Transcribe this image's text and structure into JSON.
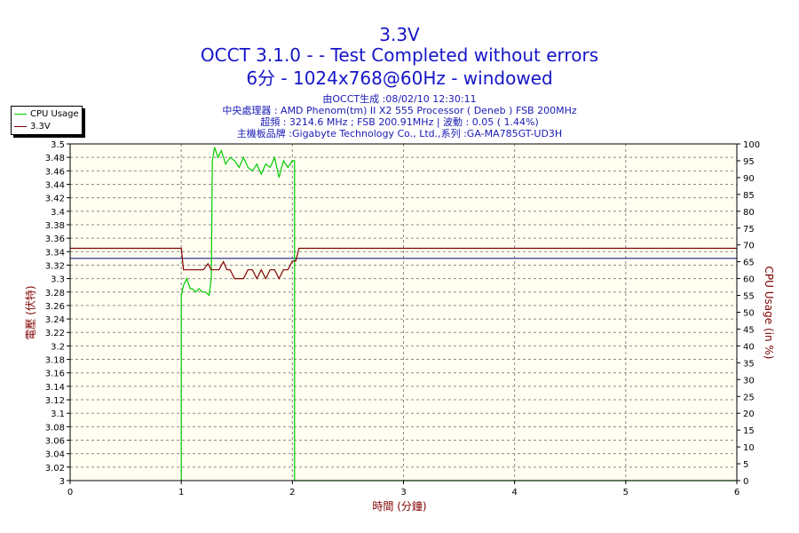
{
  "header": {
    "title": "3.3V",
    "line2": "OCCT 3.1.0 -  - Test Completed without errors",
    "line3": "6分 - 1024x768@60Hz - windowed",
    "info1": "由OCCT生成 :08/02/10 12:30:11",
    "info2": "中央處理器 : AMD Phenom(tm) II X2 555 Processor ( Deneb ) FSB 200MHz",
    "info3": "超頻 : 3214.6 MHz ; FSB 200.91MHz | 波動 : 0.05 ( 1.44%)",
    "info4": "主機板品牌 :Gigabyte Technology Co., Ltd.,系列 :GA-MA785GT-UD3H"
  },
  "legend": {
    "items": [
      {
        "label": "CPU Usage",
        "color": "#00cc00"
      },
      {
        "label": "3.3V",
        "color": "#800000"
      }
    ]
  },
  "chart_data": {
    "type": "line",
    "xlabel": "時間 (分鐘)",
    "ylabel_left": "電壓 (伏特)",
    "ylabel_right": "CPU Usage (in %)",
    "xlim": [
      0,
      6
    ],
    "ylim_left": [
      3.0,
      3.5
    ],
    "ylim_right": [
      0,
      100
    ],
    "x_ticks": [
      "0",
      "1",
      "2",
      "3",
      "4",
      "5",
      "6"
    ],
    "y_left_ticks": [
      "3",
      "3.02",
      "3.04",
      "3.06",
      "3.08",
      "3.1",
      "3.12",
      "3.14",
      "3.16",
      "3.18",
      "3.2",
      "3.22",
      "3.24",
      "3.26",
      "3.28",
      "3.3",
      "3.32",
      "3.34",
      "3.36",
      "3.38",
      "3.4",
      "3.42",
      "3.44",
      "3.46",
      "3.48",
      "3.5"
    ],
    "y_right_ticks": [
      "0",
      "5",
      "10",
      "15",
      "20",
      "25",
      "30",
      "35",
      "40",
      "45",
      "50",
      "55",
      "60",
      "65",
      "70",
      "75",
      "80",
      "85",
      "90",
      "95",
      "100"
    ],
    "grid": true,
    "legend_position": "top-left",
    "reference_line": {
      "axis": "left",
      "y": 3.33,
      "color": "#000080"
    },
    "series": [
      {
        "name": "CPU Usage",
        "axis": "right",
        "color": "#00cc00",
        "x": [
          1.0,
          1.0,
          1.02,
          1.05,
          1.08,
          1.1,
          1.13,
          1.16,
          1.19,
          1.22,
          1.25,
          1.27,
          1.28,
          1.3,
          1.33,
          1.36,
          1.4,
          1.44,
          1.48,
          1.52,
          1.56,
          1.6,
          1.64,
          1.68,
          1.72,
          1.76,
          1.8,
          1.84,
          1.88,
          1.92,
          1.96,
          2.0,
          2.02,
          2.02,
          6.0
        ],
        "y": [
          0,
          55,
          58,
          60,
          57,
          57,
          56,
          57,
          56,
          56,
          55,
          60,
          95,
          99,
          96,
          98,
          94,
          96,
          95,
          93,
          96,
          93,
          92,
          94,
          91,
          94,
          93,
          96,
          90,
          95,
          93,
          95,
          95,
          0,
          0
        ]
      },
      {
        "name": "3.3V",
        "axis": "left",
        "color": "#800000",
        "x": [
          0,
          1.0,
          1.02,
          1.05,
          1.1,
          1.15,
          1.2,
          1.24,
          1.27,
          1.3,
          1.34,
          1.38,
          1.41,
          1.44,
          1.48,
          1.52,
          1.56,
          1.6,
          1.64,
          1.68,
          1.72,
          1.76,
          1.8,
          1.84,
          1.88,
          1.92,
          1.96,
          2.0,
          2.03,
          2.06,
          2.08,
          6.0
        ],
        "y": [
          3.345,
          3.345,
          3.313,
          3.313,
          3.313,
          3.313,
          3.313,
          3.322,
          3.313,
          3.313,
          3.313,
          3.325,
          3.313,
          3.313,
          3.3,
          3.3,
          3.3,
          3.313,
          3.313,
          3.3,
          3.313,
          3.3,
          3.313,
          3.313,
          3.3,
          3.313,
          3.313,
          3.326,
          3.326,
          3.345,
          3.345,
          3.345
        ]
      }
    ]
  }
}
